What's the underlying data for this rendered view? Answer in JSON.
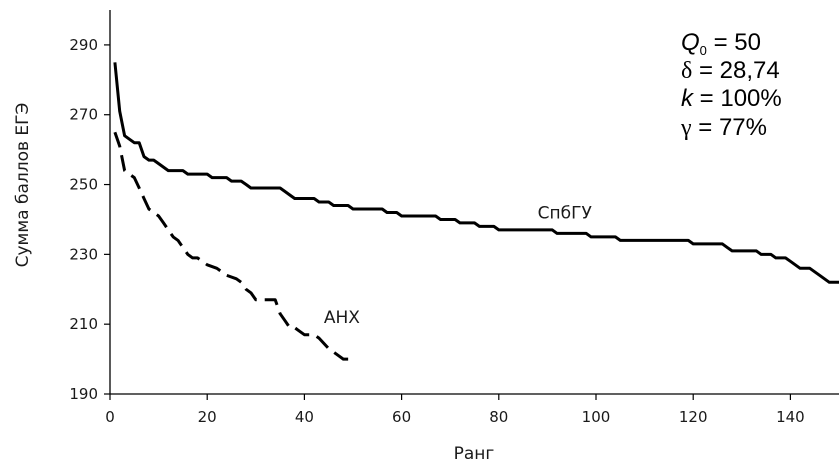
{
  "chart_data": {
    "type": "line",
    "title": "",
    "xlabel": "Ранг",
    "ylabel": "Сумма баллов ЕГЭ",
    "xlim": [
      0,
      150
    ],
    "ylim": [
      190,
      300
    ],
    "xticks": [
      0,
      20,
      40,
      60,
      80,
      100,
      120,
      140
    ],
    "yticks": [
      190,
      210,
      230,
      250,
      270,
      290
    ],
    "grid": false,
    "series": [
      {
        "name": "СпбГУ",
        "style": "solid",
        "color": "#000000",
        "points": [
          [
            1,
            285
          ],
          [
            2,
            271
          ],
          [
            3,
            264
          ],
          [
            4,
            263
          ],
          [
            5,
            262
          ],
          [
            6,
            262
          ],
          [
            7,
            258
          ],
          [
            8,
            257
          ],
          [
            9,
            257
          ],
          [
            10,
            256
          ],
          [
            12,
            254
          ],
          [
            15,
            254
          ],
          [
            16,
            253
          ],
          [
            20,
            253
          ],
          [
            21,
            252
          ],
          [
            24,
            252
          ],
          [
            25,
            251
          ],
          [
            27,
            251
          ],
          [
            28,
            250
          ],
          [
            29,
            249
          ],
          [
            35,
            249
          ],
          [
            36,
            248
          ],
          [
            37,
            247
          ],
          [
            38,
            246
          ],
          [
            39,
            246
          ],
          [
            42,
            246
          ],
          [
            43,
            245
          ],
          [
            45,
            245
          ],
          [
            46,
            244
          ],
          [
            49,
            244
          ],
          [
            50,
            243
          ],
          [
            56,
            243
          ],
          [
            57,
            242
          ],
          [
            59,
            242
          ],
          [
            60,
            241
          ],
          [
            67,
            241
          ],
          [
            68,
            240
          ],
          [
            71,
            240
          ],
          [
            72,
            239
          ],
          [
            75,
            239
          ],
          [
            76,
            238
          ],
          [
            79,
            238
          ],
          [
            80,
            237
          ],
          [
            91,
            237
          ],
          [
            92,
            236
          ],
          [
            98,
            236
          ],
          [
            99,
            235
          ],
          [
            104,
            235
          ],
          [
            105,
            234
          ],
          [
            119,
            234
          ],
          [
            120,
            233
          ],
          [
            126,
            233
          ],
          [
            127,
            232
          ],
          [
            128,
            231
          ],
          [
            133,
            231
          ],
          [
            134,
            230
          ],
          [
            136,
            230
          ],
          [
            137,
            229
          ],
          [
            139,
            229
          ],
          [
            140,
            228
          ],
          [
            142,
            226
          ],
          [
            144,
            226
          ],
          [
            146,
            224
          ],
          [
            148,
            222
          ],
          [
            150,
            222
          ]
        ]
      },
      {
        "name": "АНХ",
        "style": "dashed",
        "color": "#000000",
        "points": [
          [
            1,
            265
          ],
          [
            2,
            261
          ],
          [
            3,
            254
          ],
          [
            4,
            253
          ],
          [
            5,
            252
          ],
          [
            6,
            249
          ],
          [
            7,
            246
          ],
          [
            8,
            243
          ],
          [
            9,
            242
          ],
          [
            10,
            241
          ],
          [
            11,
            239
          ],
          [
            12,
            237
          ],
          [
            13,
            235
          ],
          [
            14,
            234
          ],
          [
            15,
            232
          ],
          [
            16,
            230
          ],
          [
            17,
            229
          ],
          [
            18,
            229
          ],
          [
            19,
            228
          ],
          [
            20,
            227
          ],
          [
            22,
            226
          ],
          [
            23,
            225
          ],
          [
            24,
            224
          ],
          [
            26,
            223
          ],
          [
            27,
            222
          ],
          [
            28,
            220
          ],
          [
            29,
            219
          ],
          [
            30,
            217
          ],
          [
            34,
            217
          ],
          [
            35,
            213
          ],
          [
            36,
            211
          ],
          [
            37,
            209
          ],
          [
            38,
            209
          ],
          [
            39,
            208
          ],
          [
            40,
            207
          ],
          [
            42,
            207
          ],
          [
            43,
            206
          ],
          [
            45,
            203
          ],
          [
            46,
            202
          ],
          [
            47,
            201
          ],
          [
            48,
            200
          ],
          [
            50,
            200
          ]
        ]
      }
    ],
    "series_labels": [
      {
        "series": "СпбГУ",
        "text": "СпбГУ",
        "at": [
          88,
          242
        ]
      },
      {
        "series": "АНХ",
        "text": "АНХ",
        "at": [
          44,
          212
        ]
      }
    ],
    "annotations": {
      "q_sym": "Q",
      "q_sub": "0",
      "q_val": " = 50",
      "delta_sym": "δ",
      "delta_val": " = 28,74",
      "k_sym": "k",
      "k_val": " = 100%",
      "gamma_sym": "γ",
      "gamma_val": " = 77%"
    }
  }
}
